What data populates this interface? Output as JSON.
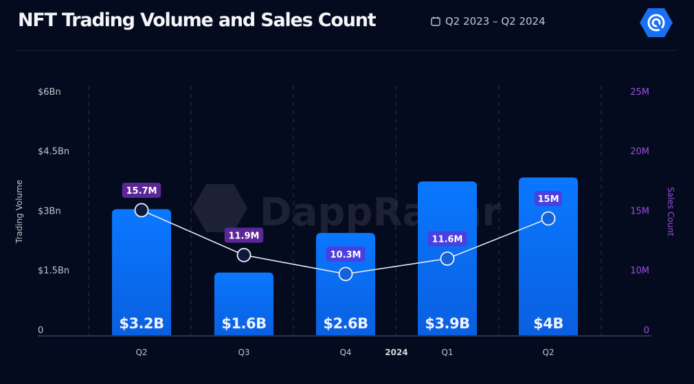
{
  "header": {
    "title": "NFT Trading Volume and Sales Count",
    "date_range": "Q2 2023 – Q2 2024",
    "calendar_icon": "calendar-icon",
    "logo_icon": "dappradar-logo-icon"
  },
  "watermark": "DappRadar",
  "chart_data": {
    "type": "bar+line",
    "title": "NFT Trading Volume and Sales Count",
    "categories": [
      "Q2",
      "Q3",
      "Q4",
      "Q1",
      "Q2"
    ],
    "year_marker": {
      "label": "2024",
      "before_category_index": 3
    },
    "series": [
      {
        "name": "Trading Volume",
        "type": "bar",
        "axis": "left",
        "unit": "USD billions",
        "values": [
          3.2,
          1.6,
          2.6,
          3.9,
          4.0
        ],
        "labels": [
          "$3.2B",
          "$1.6B",
          "$2.6B",
          "$3.9B",
          "$4B"
        ],
        "color": "#0a6cf5"
      },
      {
        "name": "Sales Count",
        "type": "line",
        "axis": "right",
        "unit": "millions",
        "values": [
          15.7,
          11.9,
          10.3,
          11.6,
          15.0
        ],
        "labels": [
          "15.7M",
          "11.9M",
          "10.3M",
          "11.6M",
          "15M"
        ],
        "label_colors": [
          "#5a2796",
          "#5a2796",
          "#4b3fe0",
          "#4b3fe0",
          "#4b3fe0"
        ],
        "color": "#ffffff"
      }
    ],
    "y_left": {
      "label": "Trading Volume",
      "ticks": [
        "0",
        "$1.5Bn",
        "$3Bn",
        "$4.5Bn",
        "$6Bn"
      ],
      "range": [
        0,
        6
      ]
    },
    "y_right": {
      "label": "Sales Count",
      "ticks": [
        "0",
        "10M",
        "15M",
        "20M",
        "25M"
      ],
      "range": [
        0,
        25
      ],
      "color": "#9b4fe0"
    },
    "grid": "vertical dashed",
    "legend": "none"
  }
}
